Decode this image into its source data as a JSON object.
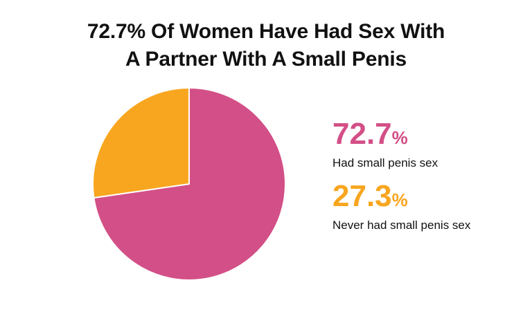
{
  "chart_data": {
    "type": "pie",
    "title_line1": "72.7% Of Women Have Had Sex With",
    "title_line2": "A Partner With A Small Penis",
    "slices": [
      {
        "label": "Had small penis sex",
        "value": 72.7,
        "value_text": "72.7",
        "unit": "%",
        "color": "#d34f87"
      },
      {
        "label": "Never had small penis sex",
        "value": 27.3,
        "value_text": "27.3",
        "unit": "%",
        "color": "#f8a61f"
      }
    ],
    "start_angle_deg": 0,
    "direction": "clockwise",
    "legend_position": "right"
  }
}
